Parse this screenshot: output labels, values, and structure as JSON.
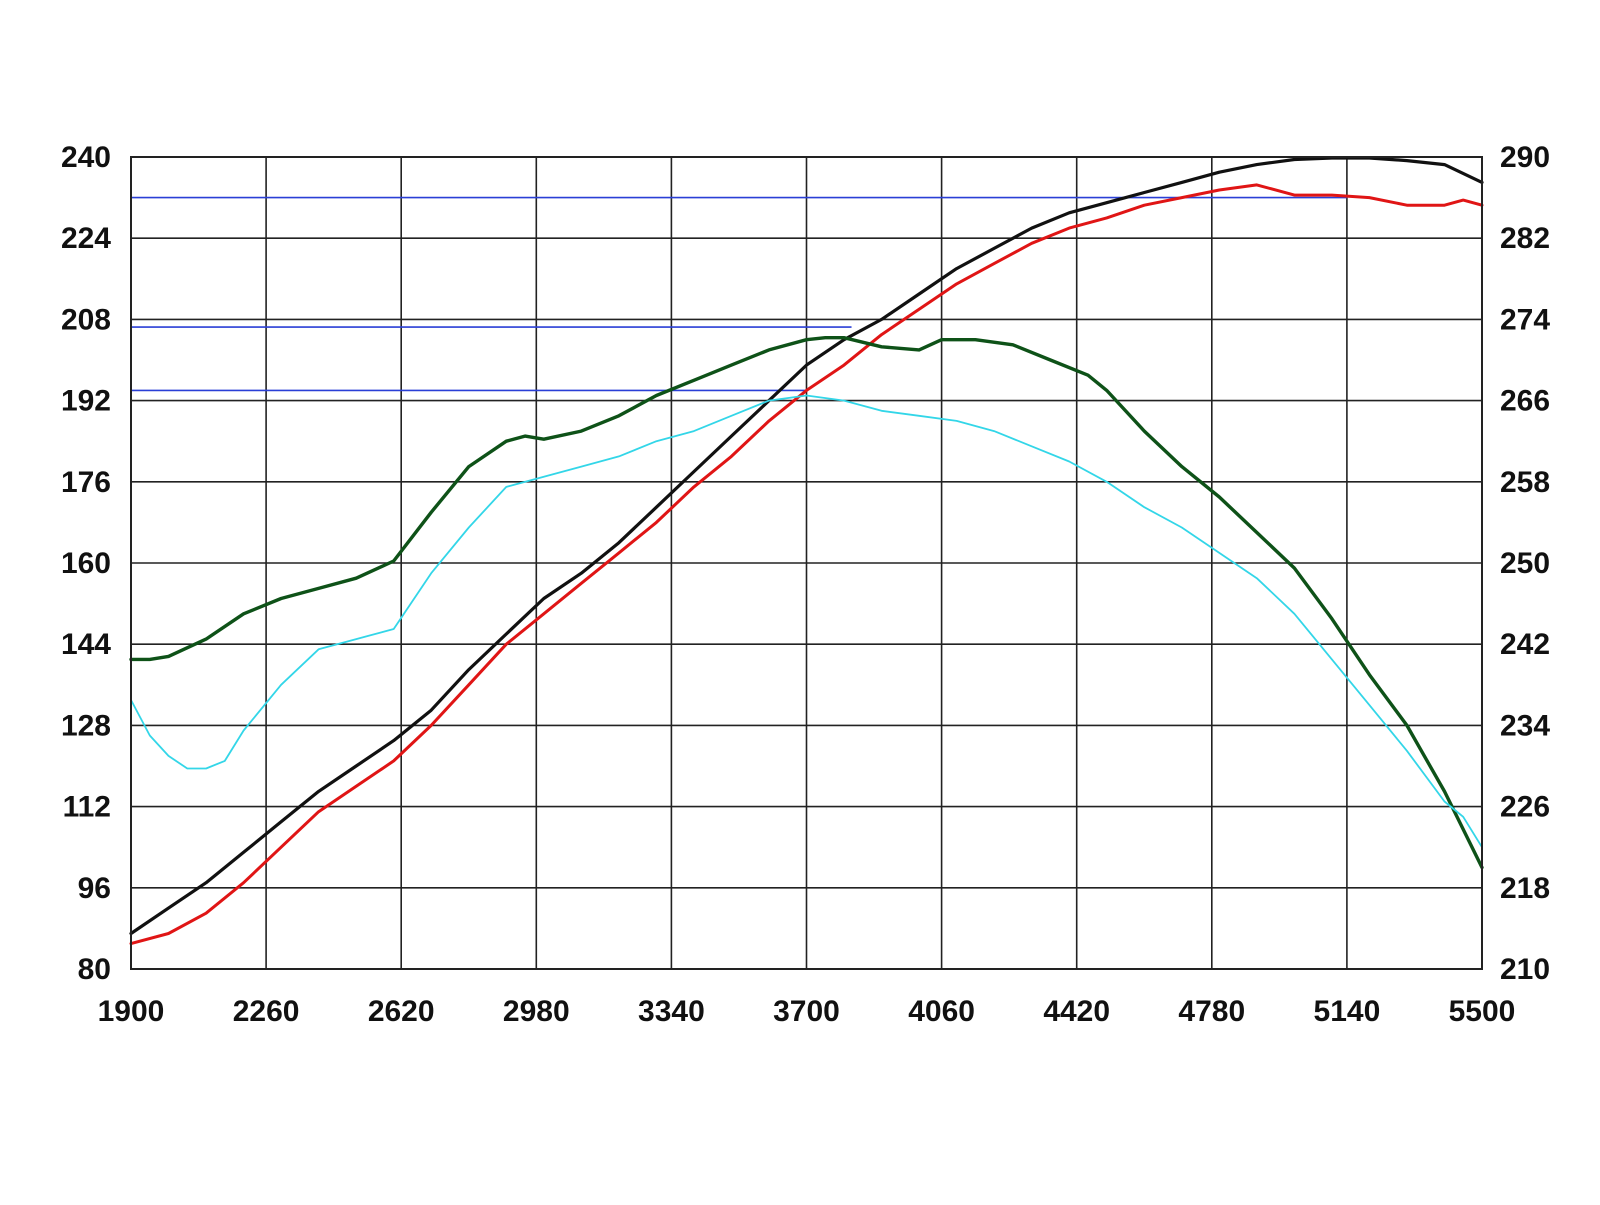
{
  "chart_data": {
    "type": "line",
    "title": "",
    "xlabel": "",
    "ylabel": "",
    "y2label": "",
    "xlim": [
      1900,
      5500
    ],
    "ylim": [
      80,
      240
    ],
    "y2lim": [
      210,
      290
    ],
    "x_ticks": [
      "1900",
      "2260",
      "2620",
      "2980",
      "3340",
      "3700",
      "4060",
      "4420",
      "4780",
      "5140",
      "5500"
    ],
    "y_ticks": [
      "80",
      "96",
      "112",
      "128",
      "144",
      "160",
      "176",
      "192",
      "208",
      "224",
      "240"
    ],
    "y2_ticks": [
      "210",
      "218",
      "226",
      "234",
      "242",
      "250",
      "258",
      "266",
      "274",
      "282",
      "290"
    ],
    "grid": true,
    "legend": "none",
    "series": [
      {
        "color": "#111111",
        "axis": "left",
        "x": [
          1900,
          2000,
          2100,
          2200,
          2300,
          2400,
          2500,
          2600,
          2700,
          2800,
          2900,
          3000,
          3100,
          3200,
          3300,
          3400,
          3500,
          3600,
          3700,
          3800,
          3900,
          4000,
          4100,
          4200,
          4300,
          4400,
          4500,
          4600,
          4700,
          4800,
          4900,
          5000,
          5100,
          5200,
          5300,
          5400,
          5500
        ],
        "y": [
          87,
          92,
          97,
          103,
          109,
          115,
          120,
          125,
          131,
          139,
          146,
          153,
          158,
          164,
          171,
          178,
          185,
          192,
          199,
          204,
          208,
          213,
          218,
          222,
          226,
          229,
          231,
          233,
          235,
          237,
          238.5,
          239.5,
          239.8,
          239.8,
          239.3,
          238.5,
          235
        ]
      },
      {
        "color": "#e01515",
        "axis": "left",
        "x": [
          1900,
          2000,
          2100,
          2200,
          2300,
          2400,
          2500,
          2600,
          2700,
          2800,
          2900,
          3000,
          3100,
          3200,
          3300,
          3400,
          3500,
          3600,
          3700,
          3800,
          3900,
          4000,
          4100,
          4200,
          4300,
          4400,
          4500,
          4600,
          4700,
          4800,
          4900,
          5000,
          5100,
          5200,
          5300,
          5400,
          5450,
          5500
        ],
        "y": [
          85,
          87,
          91,
          97,
          104,
          111,
          116,
          121,
          128,
          136,
          144,
          150,
          156,
          162,
          168,
          175,
          181,
          188,
          194,
          199,
          205,
          210,
          215,
          219,
          223,
          226,
          228,
          230.5,
          232,
          233.5,
          234.5,
          232.5,
          232.5,
          232,
          230.5,
          230.5,
          231.5,
          230.5
        ]
      },
      {
        "color": "#0e5218",
        "axis": "right",
        "x": [
          1900,
          1950,
          2000,
          2100,
          2200,
          2300,
          2400,
          2500,
          2600,
          2700,
          2800,
          2900,
          2950,
          3000,
          3100,
          3200,
          3300,
          3400,
          3500,
          3600,
          3700,
          3750,
          3800,
          3900,
          4000,
          4060,
          4150,
          4250,
          4350,
          4450,
          4500,
          4600,
          4700,
          4800,
          4900,
          5000,
          5100,
          5200,
          5300,
          5400,
          5500
        ],
        "y": [
          240.5,
          240.5,
          240.8,
          242.5,
          245,
          246.5,
          247.5,
          248.5,
          250.2,
          255,
          259.5,
          262,
          262.5,
          262.2,
          263,
          264.5,
          266.5,
          268,
          269.5,
          271,
          272,
          272.2,
          272.2,
          271.3,
          271,
          272,
          272,
          271.5,
          270,
          268.5,
          267,
          263,
          259.5,
          256.5,
          253,
          249.5,
          244.5,
          239,
          234,
          227.5,
          220
        ]
      },
      {
        "color": "#33d6e8",
        "axis": "left",
        "x": [
          1900,
          1950,
          2000,
          2050,
          2100,
          2150,
          2200,
          2300,
          2400,
          2500,
          2600,
          2700,
          2800,
          2900,
          3000,
          3100,
          3200,
          3300,
          3400,
          3500,
          3600,
          3700,
          3800,
          3900,
          4000,
          4100,
          4200,
          4300,
          4400,
          4500,
          4600,
          4700,
          4800,
          4900,
          5000,
          5100,
          5200,
          5300,
          5400,
          5450,
          5500
        ],
        "y": [
          133,
          126,
          122,
          119.5,
          119.5,
          121,
          127,
          136,
          143,
          145,
          147,
          158,
          167,
          175,
          177,
          179,
          181,
          184,
          186,
          189,
          192,
          193,
          192,
          190,
          189,
          188,
          186,
          183,
          180,
          176,
          171,
          167,
          162,
          157,
          150,
          141,
          132,
          123,
          113,
          110,
          104
        ]
      }
    ],
    "reference_lines": [
      {
        "color": "#2a3fd6",
        "axis": "left",
        "y": 232,
        "x_from": 1900,
        "x_to": 5140
      },
      {
        "color": "#2a3fd6",
        "axis": "left",
        "y": 206.5,
        "x_from": 1900,
        "x_to": 3820
      },
      {
        "color": "#2a3fd6",
        "axis": "left",
        "y": 194,
        "x_from": 1900,
        "x_to": 3700
      }
    ]
  }
}
